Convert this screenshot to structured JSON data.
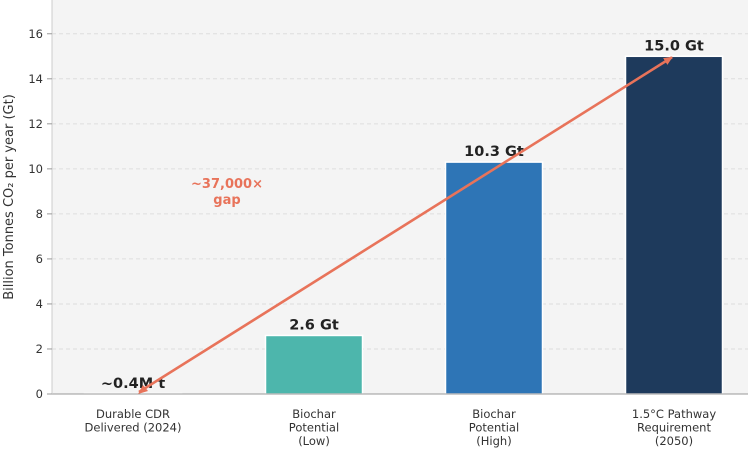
{
  "chart_data": {
    "type": "bar",
    "ylabel": "Billion Tonnes CO₂ per year (Gt)",
    "ylim": [
      0,
      17.5
    ],
    "yticks": [
      0,
      2,
      4,
      6,
      8,
      10,
      12,
      14,
      16
    ],
    "grid": true,
    "categories": [
      [
        "Durable CDR",
        "Delivered (2024)"
      ],
      [
        "Biochar",
        "Potential",
        "(Low)"
      ],
      [
        "Biochar",
        "Potential",
        "(High)"
      ],
      [
        "1.5°C Pathway",
        "Requirement",
        "(2050)"
      ]
    ],
    "values": [
      0.0004,
      2.6,
      10.3,
      15.0
    ],
    "value_labels": [
      "~0.4M t",
      "2.6 Gt",
      "10.3 Gt",
      "15.0 Gt"
    ],
    "colors": [
      "#4db6ac",
      "#4db6ac",
      "#2e75b6",
      "#1e3a5c"
    ],
    "annotation": {
      "lines": [
        "~37,000×",
        "gap"
      ],
      "color": "#e8735a",
      "arrow_from": {
        "category_index": 0,
        "value": 0
      },
      "arrow_to": {
        "category_index": 3,
        "value": 15.0
      }
    }
  }
}
